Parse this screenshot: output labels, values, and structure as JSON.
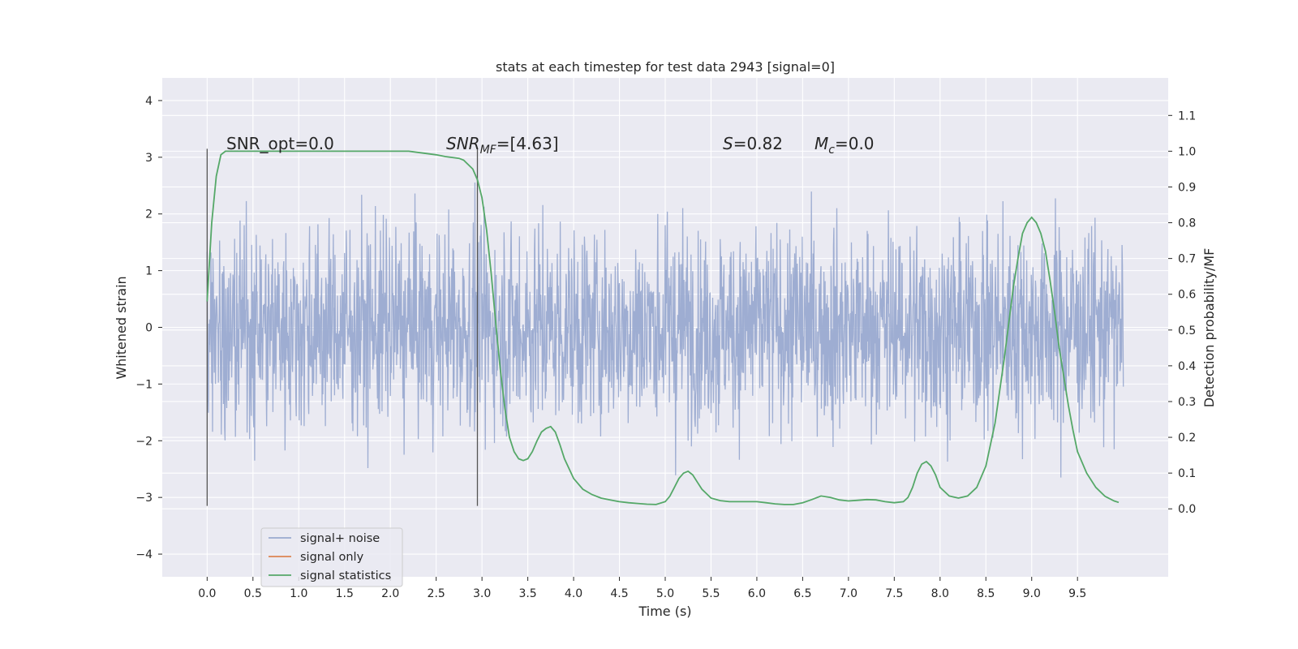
{
  "chart_data": {
    "type": "line",
    "title": "stats at each timestep for test data 2943 [signal=0]",
    "xlabel": "Time (s)",
    "ylabel": "Whitened strain",
    "ylabel_right": "Detection probability/MF",
    "xlim": [
      -0.49,
      10.49
    ],
    "ylim": [
      -4.4,
      4.4
    ],
    "ylim_right": [
      -0.19,
      1.205
    ],
    "x_ticks": [
      "0.0",
      "0.5",
      "1.0",
      "1.5",
      "2.0",
      "2.5",
      "3.0",
      "3.5",
      "4.0",
      "4.5",
      "5.0",
      "5.5",
      "6.0",
      "6.5",
      "7.0",
      "7.5",
      "8.0",
      "8.5",
      "9.0",
      "9.5"
    ],
    "y_ticks": [
      "4",
      "3",
      "2",
      "1",
      "0",
      "−1",
      "−2",
      "−3",
      "−4"
    ],
    "y_right_ticks": [
      "1.1",
      "1.0",
      "0.9",
      "0.8",
      "0.7",
      "0.6",
      "0.5",
      "0.4",
      "0.3",
      "0.2",
      "0.1",
      "0.0"
    ],
    "grid": true,
    "legend_position": "lower-left",
    "colors": {
      "background": "#eaeaf2",
      "grid": "#ffffff",
      "noise": "#9aaad0",
      "signal_only": "#dd8452",
      "statistics": "#55a868",
      "marker": "#555555"
    },
    "series": [
      {
        "name": "signal+ noise",
        "note": "dense whitened noise between about -4 and 4 from 0.0 s to 10.0 s"
      },
      {
        "name": "signal only",
        "x": [],
        "y": []
      },
      {
        "name": "signal statistics",
        "axis": "right",
        "x": [
          0.0,
          0.05,
          0.1,
          0.15,
          0.2,
          0.3,
          0.5,
          1.0,
          1.5,
          2.0,
          2.2,
          2.5,
          2.6,
          2.75,
          2.8,
          2.9,
          2.95,
          3.0,
          3.05,
          3.1,
          3.15,
          3.2,
          3.25,
          3.3,
          3.35,
          3.4,
          3.45,
          3.5,
          3.55,
          3.6,
          3.65,
          3.7,
          3.75,
          3.8,
          3.85,
          3.9,
          4.0,
          4.1,
          4.2,
          4.3,
          4.4,
          4.5,
          4.6,
          4.7,
          4.8,
          4.9,
          5.0,
          5.05,
          5.1,
          5.15,
          5.2,
          5.25,
          5.3,
          5.35,
          5.4,
          5.5,
          5.6,
          5.7,
          5.8,
          5.9,
          6.0,
          6.1,
          6.2,
          6.3,
          6.4,
          6.5,
          6.6,
          6.7,
          6.8,
          6.9,
          7.0,
          7.1,
          7.2,
          7.3,
          7.4,
          7.5,
          7.6,
          7.65,
          7.7,
          7.75,
          7.8,
          7.85,
          7.9,
          7.95,
          8.0,
          8.1,
          8.2,
          8.3,
          8.4,
          8.5,
          8.6,
          8.7,
          8.75,
          8.8,
          8.85,
          8.9,
          8.95,
          9.0,
          9.05,
          9.1,
          9.15,
          9.2,
          9.25,
          9.3,
          9.35,
          9.4,
          9.45,
          9.5,
          9.6,
          9.7,
          9.8,
          9.9,
          9.95
        ],
        "y": [
          0.58,
          0.8,
          0.93,
          0.99,
          1.0,
          1.0,
          1.0,
          1.0,
          1.0,
          1.0,
          1.0,
          0.99,
          0.985,
          0.98,
          0.975,
          0.95,
          0.92,
          0.87,
          0.78,
          0.66,
          0.52,
          0.39,
          0.28,
          0.2,
          0.16,
          0.14,
          0.135,
          0.14,
          0.16,
          0.19,
          0.215,
          0.225,
          0.23,
          0.215,
          0.18,
          0.14,
          0.085,
          0.055,
          0.04,
          0.03,
          0.025,
          0.02,
          0.017,
          0.015,
          0.013,
          0.012,
          0.02,
          0.035,
          0.06,
          0.085,
          0.1,
          0.105,
          0.095,
          0.075,
          0.055,
          0.03,
          0.023,
          0.02,
          0.02,
          0.02,
          0.02,
          0.017,
          0.014,
          0.012,
          0.012,
          0.017,
          0.026,
          0.036,
          0.032,
          0.025,
          0.022,
          0.024,
          0.026,
          0.025,
          0.02,
          0.017,
          0.02,
          0.032,
          0.06,
          0.1,
          0.125,
          0.132,
          0.12,
          0.095,
          0.06,
          0.036,
          0.03,
          0.036,
          0.06,
          0.12,
          0.24,
          0.42,
          0.52,
          0.62,
          0.7,
          0.77,
          0.8,
          0.815,
          0.8,
          0.77,
          0.72,
          0.64,
          0.55,
          0.45,
          0.37,
          0.29,
          0.22,
          0.16,
          0.1,
          0.06,
          0.035,
          0.022,
          0.018
        ]
      }
    ],
    "vertical_markers": [
      0.0,
      2.95
    ],
    "annotations": {
      "snr_opt": "SNR_opt=0.0",
      "snr_mf_main": "SNR",
      "snr_mf_sub": "MF",
      "snr_mf_value": "=[4.63]",
      "s_var": "S",
      "s_value": "=0.82",
      "mc_main": "M",
      "mc_sub": "c",
      "mc_value": "=0.0"
    }
  }
}
